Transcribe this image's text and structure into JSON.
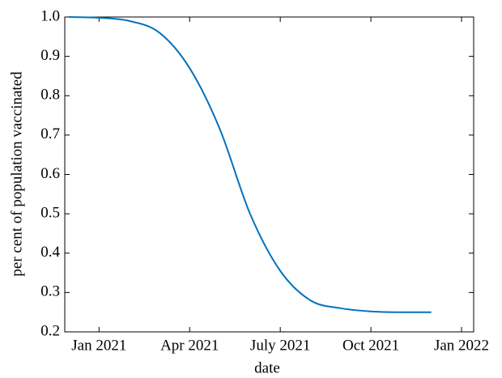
{
  "chart_data": {
    "type": "line",
    "xlabel": "date",
    "ylabel": "per cent of population vaccinated",
    "x": [
      "2020-12",
      "2021-01",
      "2021-02",
      "2021-03",
      "2021-04",
      "2021-05",
      "2021-06",
      "2021-07",
      "2021-08",
      "2021-09",
      "2021-10",
      "2021-11",
      "2021-12"
    ],
    "series": [
      {
        "color": "#0072bd",
        "values": [
          1.0,
          0.998,
          0.99,
          0.96,
          0.87,
          0.715,
          0.5,
          0.355,
          0.28,
          0.26,
          0.252,
          0.25,
          0.25
        ]
      }
    ],
    "xlim": [
      "2020-12",
      "2022-01"
    ],
    "xticks": [
      {
        "value": "2021-01",
        "label": "Jan 2021"
      },
      {
        "value": "2021-04",
        "label": "Apr 2021"
      },
      {
        "value": "2021-07",
        "label": "July 2021"
      },
      {
        "value": "2021-10",
        "label": "Oct 2021"
      },
      {
        "value": "2022-01",
        "label": "Jan 2022"
      }
    ],
    "ylim": [
      0.2,
      1.0
    ],
    "yticks": [
      0.2,
      0.3,
      0.4,
      0.5,
      0.6,
      0.7,
      0.8,
      0.9,
      {
        "value": 1,
        "label": "1.0"
      }
    ],
    "grid": false
  }
}
